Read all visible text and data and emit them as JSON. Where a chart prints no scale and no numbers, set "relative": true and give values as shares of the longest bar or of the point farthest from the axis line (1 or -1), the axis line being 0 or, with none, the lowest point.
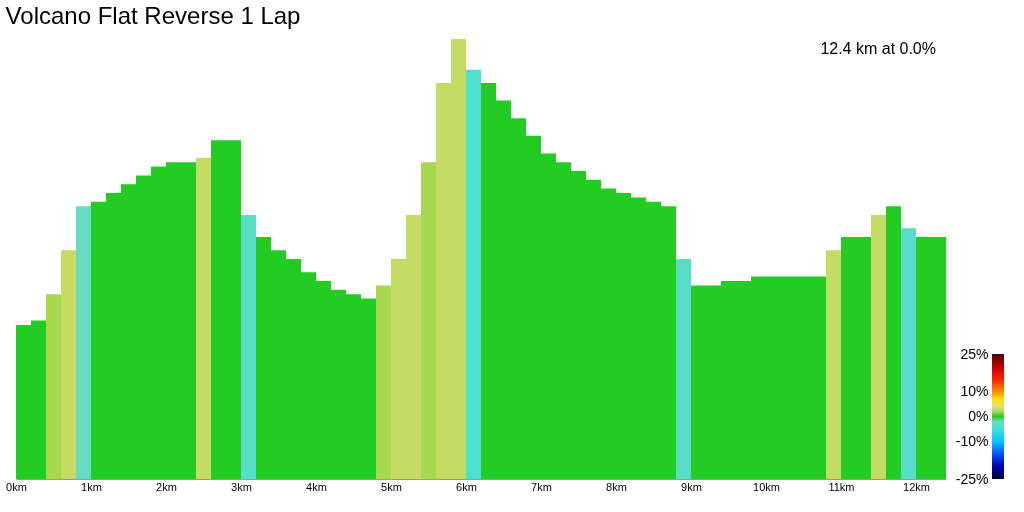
{
  "chart_data": {
    "type": "bar",
    "title": "Volcano Flat Reverse 1 Lap",
    "annotations": [
      "12.4 km at 0.0%"
    ],
    "relative": true,
    "x": [
      0.1,
      0.3,
      0.5,
      0.7,
      0.9,
      1.1,
      1.3,
      1.5,
      1.7,
      1.9,
      2.1,
      2.3,
      2.5,
      2.7,
      2.9,
      3.1,
      3.3,
      3.5,
      3.7,
      3.9,
      4.1,
      4.3,
      4.5,
      4.7,
      4.9,
      5.1,
      5.3,
      5.5,
      5.7,
      5.9,
      6.1,
      6.3,
      6.5,
      6.7,
      6.9,
      7.1,
      7.3,
      7.5,
      7.7,
      7.9,
      8.1,
      8.3,
      8.5,
      8.7,
      8.9,
      9.1,
      9.3,
      9.5,
      9.7,
      9.9,
      10.1,
      10.3,
      10.5,
      10.7,
      10.9,
      11.1,
      11.3,
      11.5,
      11.7,
      11.9,
      12.1,
      12.3
    ],
    "values": [
      0.35,
      0.36,
      0.42,
      0.52,
      0.62,
      0.63,
      0.65,
      0.67,
      0.69,
      0.71,
      0.72,
      0.72,
      0.73,
      0.77,
      0.77,
      0.6,
      0.55,
      0.52,
      0.5,
      0.47,
      0.45,
      0.43,
      0.42,
      0.41,
      0.44,
      0.5,
      0.6,
      0.72,
      0.9,
      1.0,
      0.93,
      0.9,
      0.86,
      0.82,
      0.78,
      0.74,
      0.72,
      0.7,
      0.68,
      0.66,
      0.65,
      0.64,
      0.63,
      0.62,
      0.5,
      0.44,
      0.44,
      0.45,
      0.45,
      0.46,
      0.46,
      0.46,
      0.46,
      0.46,
      0.52,
      0.55,
      0.55,
      0.6,
      0.62,
      0.57,
      0.55,
      0.55
    ],
    "cvalues": [
      0,
      0,
      2,
      3,
      -2,
      0,
      0,
      0,
      0,
      0,
      0,
      0,
      3,
      0,
      0,
      -3,
      0,
      0,
      0,
      0,
      0,
      0,
      0,
      0,
      2,
      3,
      3,
      2,
      3,
      3,
      -4,
      0,
      0,
      0,
      0,
      0,
      0,
      0,
      0,
      0,
      0,
      0,
      0,
      0,
      -3,
      0,
      0,
      0,
      0,
      0,
      0,
      0,
      0,
      0,
      3,
      0,
      0,
      3,
      0,
      -3,
      0,
      0
    ],
    "xlim": [
      0,
      12.4
    ],
    "xticks": [
      {
        "value": 0,
        "label": "0km"
      },
      {
        "value": 1,
        "label": "1km"
      },
      {
        "value": 2,
        "label": "2km"
      },
      {
        "value": 3,
        "label": "3km"
      },
      {
        "value": 4,
        "label": "4km"
      },
      {
        "value": 5,
        "label": "5km"
      },
      {
        "value": 6,
        "label": "6km"
      },
      {
        "value": 7,
        "label": "7km"
      },
      {
        "value": 8,
        "label": "8km"
      },
      {
        "value": 9,
        "label": "9km"
      },
      {
        "value": 10,
        "label": "10km"
      },
      {
        "value": 11,
        "label": "11km"
      },
      {
        "value": 12,
        "label": "12km"
      }
    ],
    "clim": [
      -25,
      25
    ],
    "cticks": [
      {
        "value": 25,
        "label": "25%"
      },
      {
        "value": 10,
        "label": "10%"
      },
      {
        "value": 0,
        "label": "0%"
      },
      {
        "value": -10,
        "label": "-10%"
      },
      {
        "value": -25,
        "label": "-25%"
      }
    ]
  }
}
